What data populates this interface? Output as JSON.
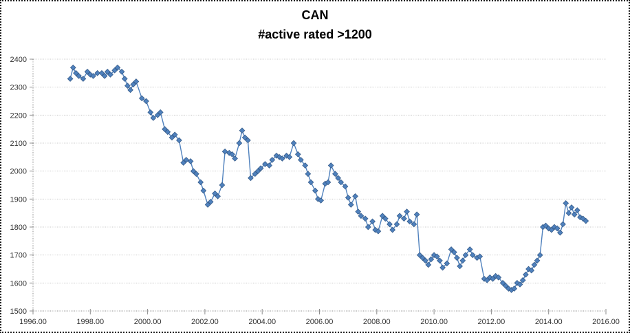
{
  "chart_data": {
    "type": "line",
    "title": "CAN",
    "subtitle": "#active rated >1200",
    "xlabel": "",
    "ylabel": "",
    "xlim": [
      1996,
      2016
    ],
    "ylim": [
      1500,
      2400
    ],
    "x_tick_values": [
      1996,
      1998,
      2000,
      2002,
      2004,
      2006,
      2008,
      2010,
      2012,
      2014,
      2016
    ],
    "x_tick_labels": [
      "1996.00",
      "1998.00",
      "2000.00",
      "2002.00",
      "2004.00",
      "2006.00",
      "2008.00",
      "2010.00",
      "2012.00",
      "2014.00",
      "2016.00"
    ],
    "y_tick_values": [
      1500,
      1600,
      1700,
      1800,
      1900,
      2000,
      2100,
      2200,
      2300,
      2400
    ],
    "y_tick_labels": [
      "1500",
      "1600",
      "1700",
      "1800",
      "1900",
      "2000",
      "2100",
      "2200",
      "2300",
      "2400"
    ],
    "grid": "horizontal",
    "legend": "none",
    "marker": "diamond",
    "colors": {
      "series_line": "#4F81BD",
      "marker_fill": "#4F81BD",
      "marker_border": "#385D8A",
      "gridline": "#c9c9c9",
      "axis": "#8c8c8c",
      "tick_text": "#333333",
      "title_text": "#000000",
      "background": "#ffffff",
      "frame_border": "#1a1a1a"
    },
    "series": [
      {
        "name": "CAN active rated >1200",
        "x": [
          1997.3,
          1997.4,
          1997.5,
          1997.6,
          1997.75,
          1997.9,
          1998.0,
          1998.1,
          1998.25,
          1998.4,
          1998.5,
          1998.6,
          1998.7,
          1998.85,
          1998.95,
          1999.1,
          1999.2,
          1999.3,
          1999.4,
          1999.5,
          1999.6,
          1999.8,
          1999.95,
          2000.1,
          2000.2,
          2000.35,
          2000.45,
          2000.6,
          2000.7,
          2000.85,
          2000.95,
          2001.1,
          2001.25,
          2001.35,
          2001.5,
          2001.6,
          2001.7,
          2001.85,
          2001.95,
          2002.1,
          2002.2,
          2002.35,
          2002.45,
          2002.6,
          2002.7,
          2002.85,
          2002.95,
          2003.05,
          2003.2,
          2003.3,
          2003.4,
          2003.5,
          2003.6,
          2003.75,
          2003.85,
          2003.95,
          2004.1,
          2004.25,
          2004.35,
          2004.5,
          2004.6,
          2004.7,
          2004.85,
          2004.95,
          2005.1,
          2005.25,
          2005.35,
          2005.5,
          2005.6,
          2005.7,
          2005.85,
          2005.95,
          2006.05,
          2006.2,
          2006.3,
          2006.4,
          2006.55,
          2006.65,
          2006.75,
          2006.9,
          2007.0,
          2007.1,
          2007.25,
          2007.35,
          2007.45,
          2007.6,
          2007.7,
          2007.85,
          2007.95,
          2008.05,
          2008.2,
          2008.3,
          2008.45,
          2008.55,
          2008.7,
          2008.8,
          2008.95,
          2009.05,
          2009.15,
          2009.3,
          2009.4,
          2009.5,
          2009.6,
          2009.7,
          2009.8,
          2009.9,
          2010.0,
          2010.1,
          2010.2,
          2010.3,
          2010.45,
          2010.6,
          2010.7,
          2010.8,
          2010.9,
          2011.0,
          2011.1,
          2011.25,
          2011.35,
          2011.5,
          2011.6,
          2011.75,
          2011.85,
          2011.95,
          2012.05,
          2012.15,
          2012.25,
          2012.4,
          2012.5,
          2012.6,
          2012.7,
          2012.8,
          2012.9,
          2013.0,
          2013.1,
          2013.2,
          2013.3,
          2013.4,
          2013.5,
          2013.6,
          2013.7,
          2013.8,
          2013.9,
          2014.0,
          2014.1,
          2014.2,
          2014.3,
          2014.4,
          2014.5,
          2014.6,
          2014.7,
          2014.8,
          2014.9,
          2015.0,
          2015.1,
          2015.2,
          2015.3
        ],
        "values": [
          2330,
          2370,
          2350,
          2340,
          2330,
          2355,
          2345,
          2340,
          2350,
          2350,
          2340,
          2355,
          2345,
          2360,
          2370,
          2355,
          2330,
          2305,
          2290,
          2310,
          2320,
          2260,
          2250,
          2210,
          2190,
          2200,
          2210,
          2150,
          2140,
          2120,
          2130,
          2110,
          2030,
          2040,
          2035,
          2000,
          1990,
          1960,
          1930,
          1880,
          1890,
          1920,
          1910,
          1950,
          2070,
          2065,
          2060,
          2045,
          2100,
          2145,
          2120,
          2110,
          1975,
          1990,
          2000,
          2010,
          2025,
          2020,
          2040,
          2055,
          2050,
          2045,
          2055,
          2050,
          2100,
          2060,
          2040,
          2020,
          1990,
          1960,
          1930,
          1900,
          1895,
          1955,
          1960,
          2020,
          1990,
          1975,
          1960,
          1945,
          1905,
          1880,
          1910,
          1855,
          1840,
          1830,
          1800,
          1820,
          1790,
          1785,
          1840,
          1830,
          1810,
          1790,
          1810,
          1840,
          1830,
          1855,
          1820,
          1810,
          1845,
          1700,
          1690,
          1680,
          1665,
          1685,
          1700,
          1695,
          1680,
          1655,
          1670,
          1720,
          1710,
          1690,
          1660,
          1680,
          1700,
          1720,
          1700,
          1690,
          1695,
          1615,
          1610,
          1620,
          1615,
          1625,
          1620,
          1600,
          1590,
          1580,
          1575,
          1580,
          1600,
          1595,
          1610,
          1630,
          1650,
          1645,
          1665,
          1680,
          1700,
          1800,
          1805,
          1795,
          1790,
          1800,
          1795,
          1780,
          1810,
          1885,
          1850,
          1870,
          1845,
          1860,
          1835,
          1830,
          1822
        ]
      }
    ],
    "layout": {
      "plot_left": 48,
      "plot_right": 881,
      "plot_top": 86,
      "plot_bottom": 452
    }
  }
}
